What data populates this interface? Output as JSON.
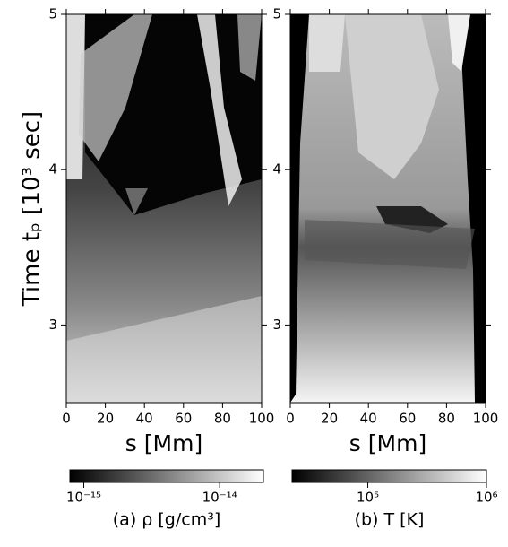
{
  "chart_data": [
    {
      "type": "heatmap",
      "ylabel": "Time tₚ [10³ sec]",
      "xlabel": "s [Mm]",
      "xlim": [
        0,
        100
      ],
      "xticks": [
        0,
        20,
        40,
        60,
        80,
        100
      ],
      "ylim": [
        2.5,
        5
      ],
      "yticks": [
        3,
        4,
        5
      ],
      "colorbar": {
        "label": "(a) ρ [g/cm³]",
        "scale": "log",
        "lim": [
          7.9e-16,
          2.1e-14
        ],
        "ticks": [
          {
            "value": 1e-15,
            "label": "10⁻¹⁵"
          },
          {
            "value": 1e-14,
            "label": "10⁻¹⁴"
          }
        ]
      }
    },
    {
      "type": "heatmap",
      "xlabel": "s [Mm]",
      "xlim": [
        0,
        100
      ],
      "xticks": [
        0,
        20,
        40,
        60,
        80,
        100
      ],
      "ylim": [
        2.5,
        5
      ],
      "yticks": [
        3,
        4,
        5
      ],
      "colorbar": {
        "label": "(b) T [K]",
        "scale": "log",
        "lim": [
          23000,
          1000000
        ],
        "ticks": [
          {
            "value": 100000,
            "label": "10⁵"
          },
          {
            "value": 1000000,
            "label": "10⁶"
          }
        ]
      }
    }
  ]
}
